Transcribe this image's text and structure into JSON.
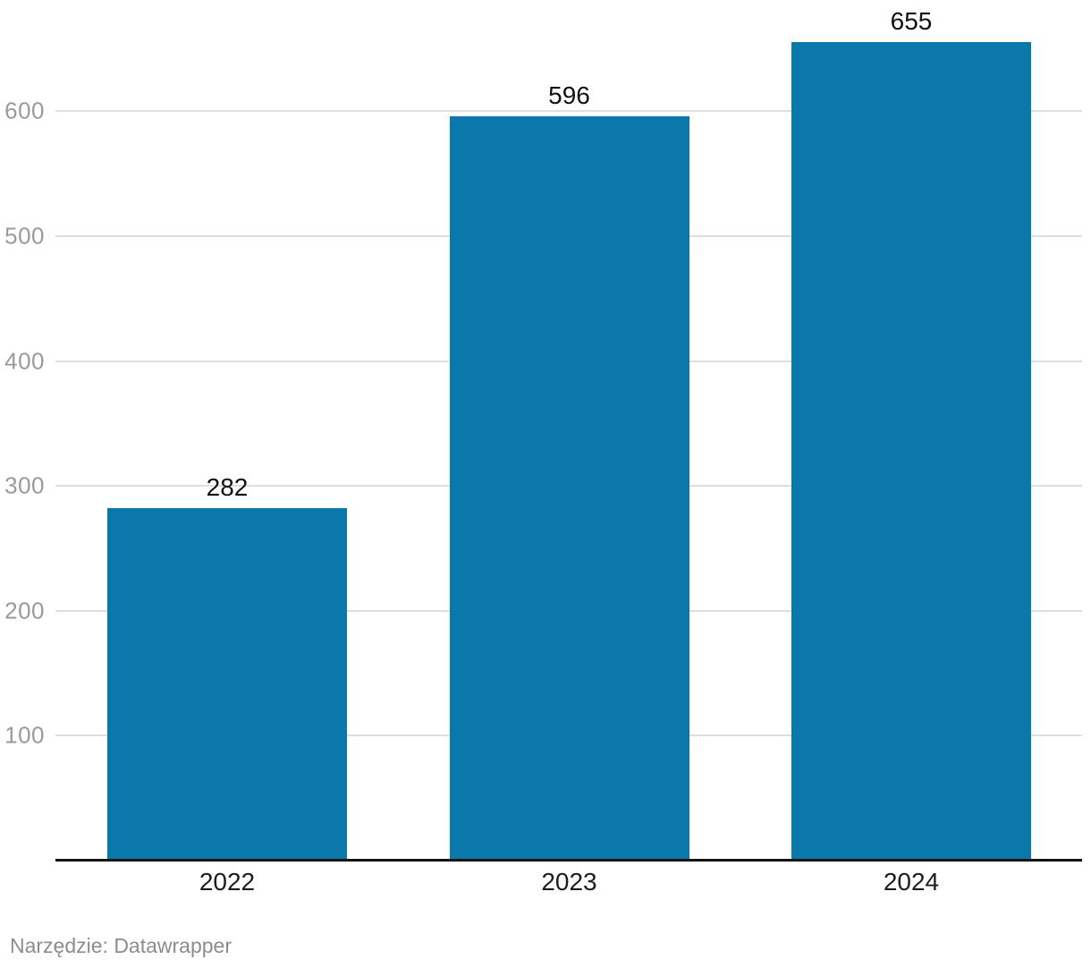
{
  "chart_data": {
    "type": "bar",
    "categories": [
      "2022",
      "2023",
      "2024"
    ],
    "values": [
      282,
      596,
      655
    ],
    "value_labels": [
      "282",
      "596",
      "655"
    ],
    "yticks": [
      100,
      200,
      300,
      400,
      500,
      600
    ],
    "ylim": [
      0,
      689
    ],
    "grid": "horizontal-only",
    "legend": "none",
    "bar_color": "#0b78ab"
  },
  "footer": {
    "text": "Narzędzie: Datawrapper"
  },
  "colors": {
    "bar": "#0b78ab",
    "gridline": "#dedede",
    "axis_line": "#141414",
    "y_tick_text": "#9a9a9a",
    "x_tick_text": "#1d1d1d",
    "value_label_text": "#111111",
    "footer_text": "#8c8c8c",
    "background": "#ffffff"
  }
}
